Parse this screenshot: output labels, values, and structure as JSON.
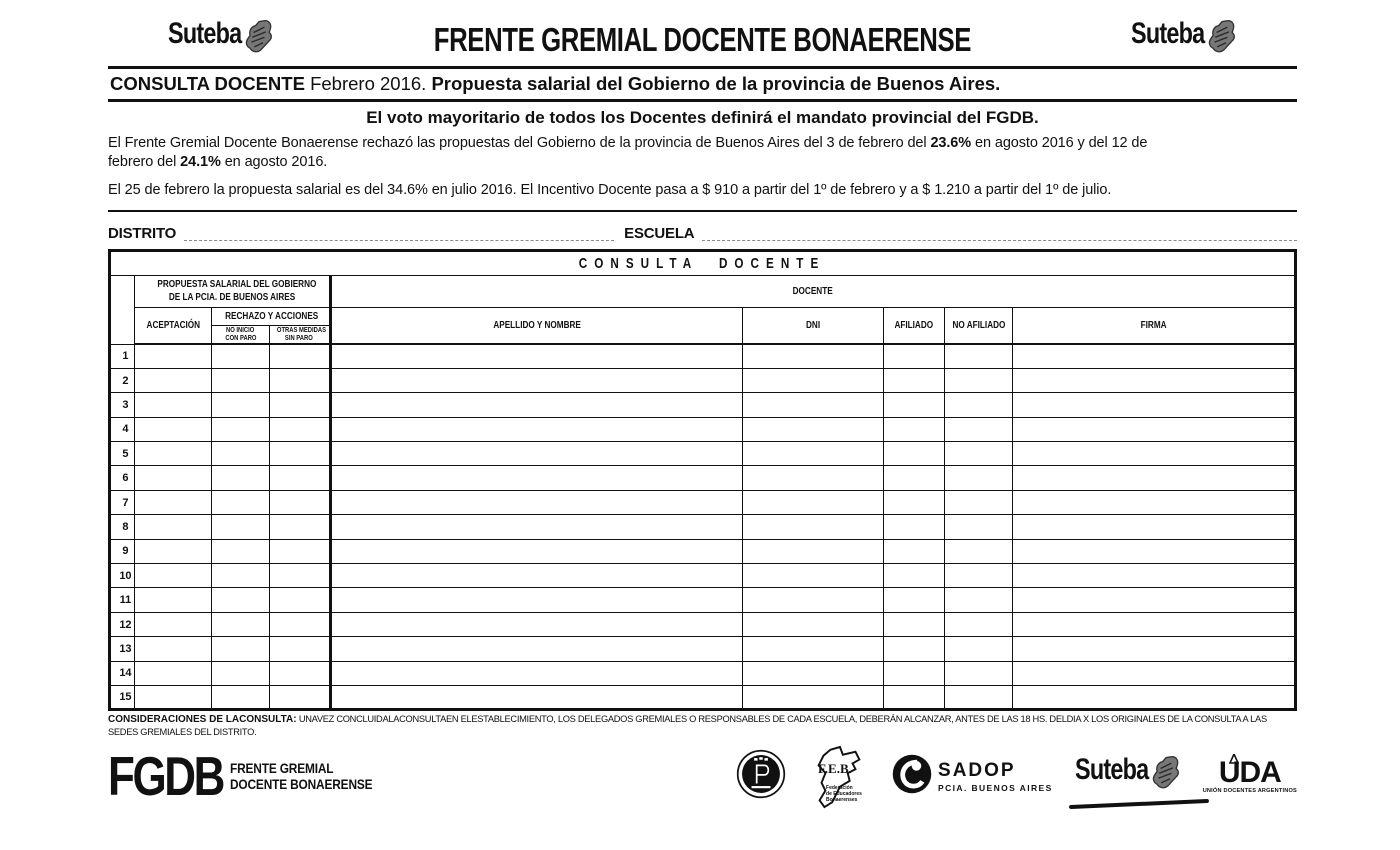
{
  "colors": {
    "ink": "#111111",
    "paper": "#ffffff",
    "dotted_line": "#9a9a9a",
    "fist_gray": "#777777"
  },
  "icons": {
    "brand_fist": "raised-fist-icon",
    "circle_badge": "circular-p-badge-icon",
    "feb_map": "buenos-aires-province-map-icon",
    "sadop_badge": "sadop-person-circle-icon",
    "uda_pencil": "pencil-tip-icon"
  },
  "header": {
    "brand_left": "Suteba",
    "brand_right": "Suteba",
    "title": "FRENTE GREMIAL DOCENTE BONAERENSE",
    "subtitle_bold1": "CONSULTA DOCENTE",
    "subtitle_regular": " Febrero 2016. ",
    "subtitle_bold2": "Propuesta salarial del Gobierno de la provincia de Buenos Aires."
  },
  "intro": {
    "highlight": "El voto mayoritario de todos los Docentes definirá el mandato provincial del FGDB.",
    "p1": {
      "t1": "El Frente Gremial Docente Bonaerense rechazó las propuestas del Gobierno de la provincia de Buenos Aires del 3 de febrero del ",
      "b1": "23.6%",
      "t2": " en agosto 2016 y del 12 de",
      "t3": "febrero del ",
      "b2": "24.1%",
      "t4": " en agosto 2016."
    },
    "p2": {
      "t1": "El 25 de febrero la propuesta salarial es del ",
      "b1": "34.6%",
      "t2": " en julio 2016. El Incentivo Docente pasa a $ 910 a partir del 1º de febrero y a $ 1.210 a partir del 1º de julio."
    }
  },
  "fields": {
    "distrito_label": "DISTRITO",
    "escuela_label": "ESCUELA"
  },
  "table": {
    "title": "CONSULTA DOCENTE",
    "group_left_line1": "PROPUESTA SALARIAL DEL GOBIERNO",
    "group_left_line2": "DE LA PCIA. DE BUENOS AIRES",
    "group_right": "DOCENTE",
    "col_aceptacion": "ACEPTACIÓN",
    "rechazo_header": "RECHAZO Y ACCIONES",
    "sub1_line1": "NO INICIO",
    "sub1_line2": "CON PARO",
    "sub2_line1": "OTRAS MEDIDAS",
    "sub2_line2": "SIN PARO",
    "col_apellido": "APELLIDO Y NOMBRE",
    "col_dni": "DNI",
    "col_afiliado": "AFILIADO",
    "col_no_afiliado": "NO AFILIADO",
    "col_firma": "FIRMA",
    "row_numbers": [
      "1",
      "2",
      "3",
      "4",
      "5",
      "6",
      "7",
      "8",
      "9",
      "10",
      "11",
      "12",
      "13",
      "14",
      "15"
    ]
  },
  "considerations": {
    "label": "CONSIDERACIONES DE LACONSULTA:",
    "text": " UNAVEZ CONCLUIDALACONSULTAEN ELESTABLECIMIENTO, LOS DELEGADOS GREMIALES O RESPONSABLES DE CADA ESCUELA, DEBERÁN ALCANZAR, ANTES DE LAS 18 HS. DELDIA X LOS ORIGINALES DE LA CONSULTA A LAS SEDES GREMIALES DEL DISTRITO."
  },
  "footer": {
    "fgdb": "FGDB",
    "fgdb_sub1": "FRENTE GREMIAL",
    "fgdb_sub2": "DOCENTE BONAERENSE",
    "feb": "F.E.B.",
    "feb_cap1": "Federación",
    "feb_cap2": "de Educadores",
    "feb_cap3": "Bonaerenses",
    "sadop": "SADOP",
    "sadop_sub": "PCIA. BUENOS AIRES",
    "suteba": "Suteba",
    "uda": "UDA",
    "uda_sub": "UNIÓN DOCENTES ARGENTINOS"
  }
}
